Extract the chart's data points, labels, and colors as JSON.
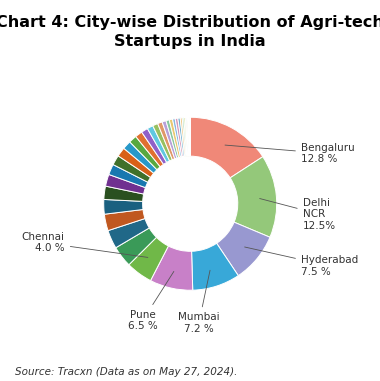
{
  "title": "Chart 4: City-wise Distribution of Agri-tech\nStartups in India",
  "source": "Source: Tracxn (Data as on May 27, 2024).",
  "slices": [
    {
      "label": "Bengaluru\n12.8 %",
      "value": 12.8,
      "color": "#F08878"
    },
    {
      "label": "Delhi\nNCR\n12.5%",
      "value": 12.5,
      "color": "#94C87A"
    },
    {
      "label": "Hyderabad\n7.5 %",
      "value": 7.5,
      "color": "#9898D0"
    },
    {
      "label": "Mumbai\n7.2 %",
      "value": 7.2,
      "color": "#38A8D8"
    },
    {
      "label": "Pune\n6.5 %",
      "value": 6.5,
      "color": "#C880C8"
    },
    {
      "label": "Chennai\n4.0 %",
      "value": 4.0,
      "color": "#70B848"
    },
    {
      "label": "",
      "value": 3.2,
      "color": "#3A9A58"
    },
    {
      "label": "",
      "value": 2.8,
      "color": "#206888"
    },
    {
      "label": "",
      "value": 2.5,
      "color": "#C05820"
    },
    {
      "label": "",
      "value": 2.2,
      "color": "#1A6080"
    },
    {
      "label": "",
      "value": 2.0,
      "color": "#2A5020"
    },
    {
      "label": "",
      "value": 1.8,
      "color": "#703090"
    },
    {
      "label": "",
      "value": 1.6,
      "color": "#1878B0"
    },
    {
      "label": "",
      "value": 1.5,
      "color": "#40702A"
    },
    {
      "label": "",
      "value": 1.4,
      "color": "#D86018"
    },
    {
      "label": "",
      "value": 1.3,
      "color": "#2898C8"
    },
    {
      "label": "",
      "value": 1.2,
      "color": "#58A840"
    },
    {
      "label": "",
      "value": 1.1,
      "color": "#E07030"
    },
    {
      "label": "",
      "value": 1.0,
      "color": "#9060C8"
    },
    {
      "label": "",
      "value": 0.9,
      "color": "#60C8E0"
    },
    {
      "label": "",
      "value": 0.8,
      "color": "#98C060"
    },
    {
      "label": "",
      "value": 0.7,
      "color": "#E09868"
    },
    {
      "label": "",
      "value": 0.6,
      "color": "#B8A0D8"
    },
    {
      "label": "",
      "value": 0.5,
      "color": "#88C8A0"
    },
    {
      "label": "",
      "value": 0.5,
      "color": "#E8C870"
    },
    {
      "label": "",
      "value": 0.4,
      "color": "#88B8E0"
    },
    {
      "label": "",
      "value": 0.4,
      "color": "#D898B8"
    },
    {
      "label": "",
      "value": 0.35,
      "color": "#70B0D0"
    },
    {
      "label": "",
      "value": 0.3,
      "color": "#F0C888"
    },
    {
      "label": "",
      "value": 0.25,
      "color": "#A8D8B8"
    },
    {
      "label": "",
      "value": 0.22,
      "color": "#C8E090"
    },
    {
      "label": "",
      "value": 0.18,
      "color": "#F0D0A8"
    },
    {
      "label": "",
      "value": 0.15,
      "color": "#A8D0E8"
    },
    {
      "label": "",
      "value": 0.12,
      "color": "#E8C0A0"
    },
    {
      "label": "",
      "value": 0.1,
      "color": "#D0E8B0"
    },
    {
      "label": "",
      "value": 0.08,
      "color": "#F8E0C0"
    },
    {
      "label": "",
      "value": 0.06,
      "color": "#C0D8F0"
    },
    {
      "label": "",
      "value": 0.04,
      "color": "#E8D0B8"
    }
  ],
  "background_color": "#FFFFFF",
  "title_fontsize": 11.5,
  "label_fontsize": 7.5,
  "source_fontsize": 7.5
}
